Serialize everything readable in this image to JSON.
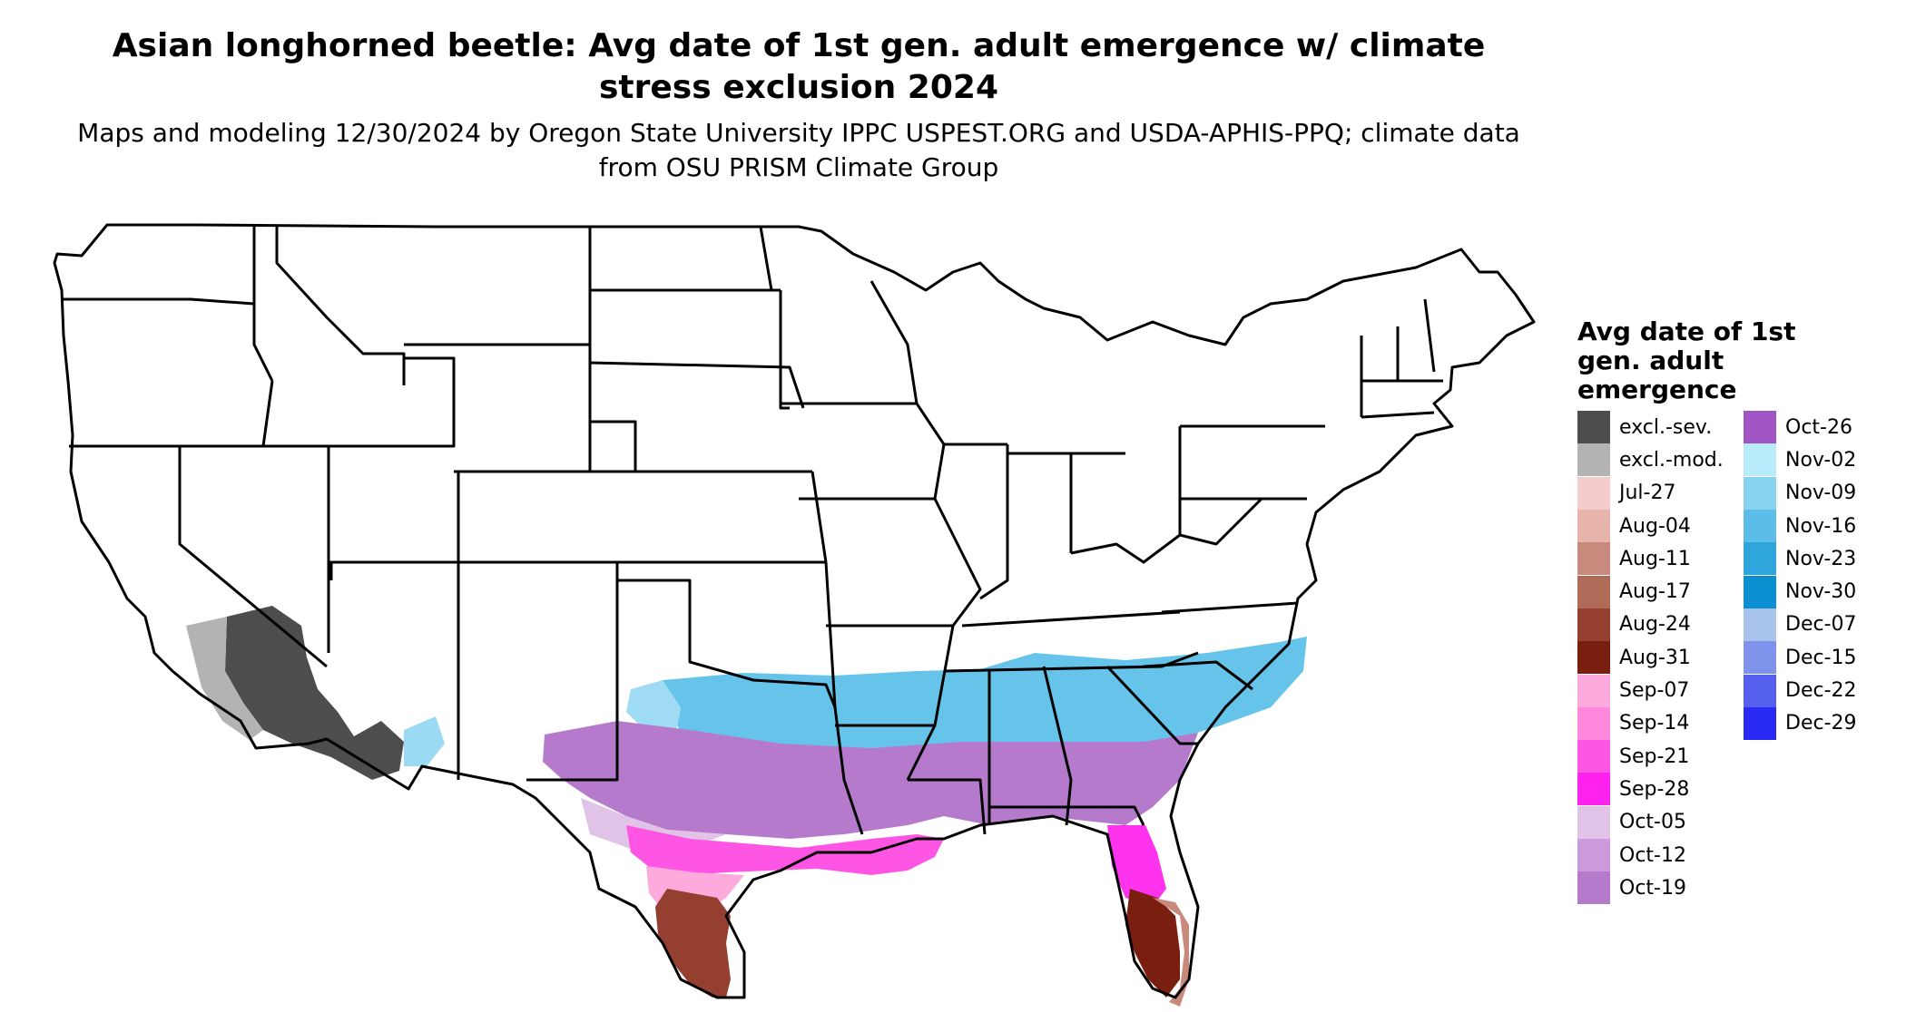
{
  "title": "Asian longhorned beetle: Avg date of 1st gen. adult emergence w/ climate stress exclusion 2024",
  "subtitle": "Maps and modeling 12/30/2024 by Oregon State University IPPC USPEST.ORG and USDA-APHIS-PPQ; climate data from OSU PRISM Climate Group",
  "legend": {
    "title": "Avg date of 1st gen. adult emergence",
    "columns": [
      [
        {
          "label": "excl.-sev.",
          "color": "#4d4d4d"
        },
        {
          "label": "excl.-mod.",
          "color": "#b3b3b3"
        },
        {
          "label": "Jul-27",
          "color": "#f4cccc"
        },
        {
          "label": "Aug-04",
          "color": "#e6b4aa"
        },
        {
          "label": "Aug-11",
          "color": "#c98a7e"
        },
        {
          "label": "Aug-17",
          "color": "#b06a58"
        },
        {
          "label": "Aug-24",
          "color": "#943f2f"
        },
        {
          "label": "Aug-31",
          "color": "#7a1f0f"
        },
        {
          "label": "Sep-07",
          "color": "#ffaadd"
        },
        {
          "label": "Sep-14",
          "color": "#ff88dd"
        },
        {
          "label": "Sep-21",
          "color": "#ff55e5"
        },
        {
          "label": "Sep-28",
          "color": "#ff22ee"
        },
        {
          "label": "Oct-05",
          "color": "#e2c3e8"
        },
        {
          "label": "Oct-12",
          "color": "#cc99dd"
        },
        {
          "label": "Oct-19",
          "color": "#b57acc"
        }
      ],
      [
        {
          "label": "Oct-26",
          "color": "#a155c4"
        },
        {
          "label": "Nov-02",
          "color": "#b8ecfa"
        },
        {
          "label": "Nov-09",
          "color": "#88d4f0"
        },
        {
          "label": "Nov-16",
          "color": "#5bbde8"
        },
        {
          "label": "Nov-23",
          "color": "#2fa5de"
        },
        {
          "label": "Nov-30",
          "color": "#0a8fd0"
        },
        {
          "label": "Dec-07",
          "color": "#a8c4ec"
        },
        {
          "label": "Dec-15",
          "color": "#7f92ec"
        },
        {
          "label": "Dec-22",
          "color": "#5560ee"
        },
        {
          "label": "Dec-29",
          "color": "#2a2af5"
        }
      ]
    ]
  }
}
